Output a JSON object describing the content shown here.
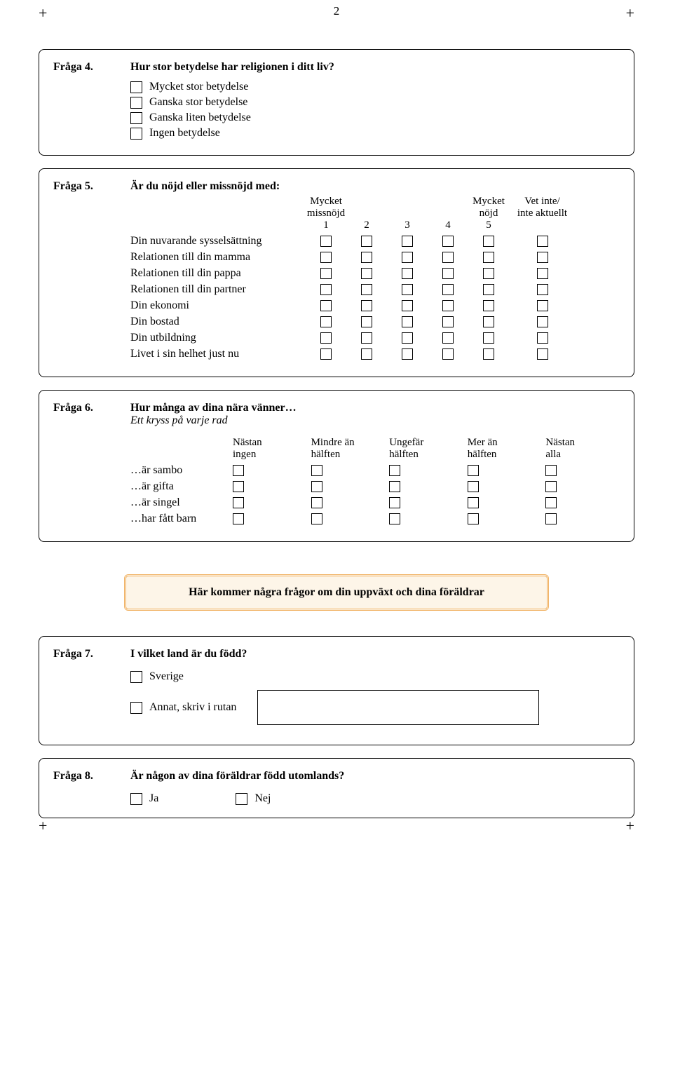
{
  "page_number": "2",
  "crop_mark": "+",
  "q4": {
    "label": "Fråga 4.",
    "text": "Hur stor betydelse har religionen i ditt liv?",
    "options": [
      "Mycket stor betydelse",
      "Ganska stor betydelse",
      "Ganska liten betydelse",
      "Ingen betydelse"
    ]
  },
  "q5": {
    "label": "Fråga 5.",
    "text": "Är du nöjd eller missnöjd med:",
    "col_head_left1": "Mycket",
    "col_head_left2": "missnöjd",
    "col_head_right1": "Mycket",
    "col_head_right2": "nöjd",
    "col_head_extra1": "Vet inte/",
    "col_head_extra2": "inte aktuellt",
    "col_nums": [
      "1",
      "2",
      "3",
      "4",
      "5"
    ],
    "rows": [
      "Din nuvarande sysselsättning",
      "Relationen till din mamma",
      "Relationen till din pappa",
      "Relationen till din partner",
      "Din ekonomi",
      "Din bostad",
      "Din utbildning",
      "Livet i sin helhet just nu"
    ]
  },
  "q6": {
    "label": "Fråga 6.",
    "text": "Hur många av dina nära vänner…",
    "sub": "Ett kryss på varje rad",
    "cols_l1": [
      "Nästan",
      "Mindre än",
      "Ungefär",
      "Mer än",
      "Nästan"
    ],
    "cols_l2": [
      "ingen",
      "hälften",
      "hälften",
      "hälften",
      "alla"
    ],
    "rows": [
      "…är sambo",
      "…är gifta",
      "…är singel",
      "…har fått barn"
    ]
  },
  "banner": "Här kommer några frågor om din uppväxt och dina föräldrar",
  "q7": {
    "label": "Fråga 7.",
    "text": "I vilket land är du född?",
    "opt1": "Sverige",
    "opt2": "Annat, skriv i rutan"
  },
  "q8": {
    "label": "Fråga 8.",
    "text": "Är någon av dina föräldrar född utomlands?",
    "opt1": "Ja",
    "opt2": "Nej"
  },
  "colors": {
    "banner_border": "#f0b060",
    "banner_bg": "#fdf5e8",
    "text": "#000000",
    "page_bg": "#ffffff"
  }
}
